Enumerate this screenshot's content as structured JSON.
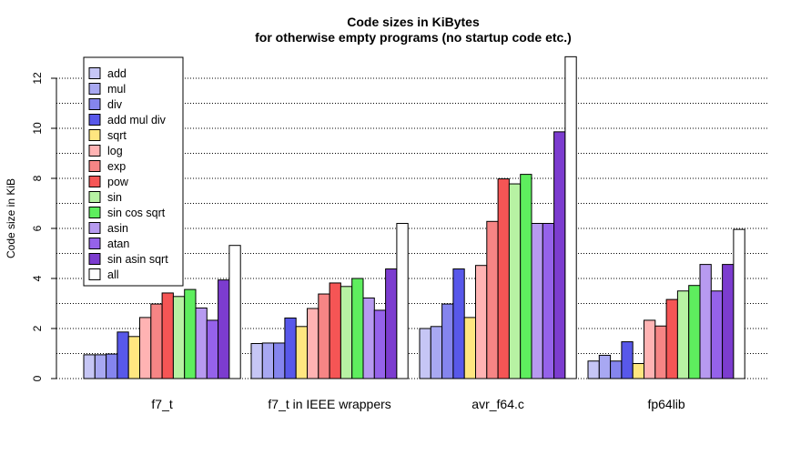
{
  "chart_data": {
    "type": "bar",
    "title": "Code sizes in KiBytes",
    "subtitle": "for otherwise empty programs (no startup code etc.)",
    "xlabel": "",
    "ylabel": "Code size in KiB",
    "ylim": [
      0,
      12.8
    ],
    "yticks": [
      0,
      2,
      4,
      6,
      8,
      10,
      12
    ],
    "grid": "horizontal dotted lines every 1 KiB",
    "legend_position": "top-left",
    "categories": [
      "f7_t",
      "f7_t in IEEE wrappers",
      "avr_f64.c",
      "fp64lib"
    ],
    "series": [
      {
        "name": "add",
        "color": "#c6c6f5",
        "values": [
          0.95,
          1.4,
          2.0,
          0.7
        ]
      },
      {
        "name": "mul",
        "color": "#a8a8f2",
        "values": [
          0.95,
          1.42,
          2.08,
          0.93
        ]
      },
      {
        "name": "div",
        "color": "#8585ee",
        "values": [
          0.98,
          1.42,
          2.98,
          0.7
        ]
      },
      {
        "name": "add mul div",
        "color": "#5858ea",
        "values": [
          1.86,
          2.42,
          4.38,
          1.47
        ]
      },
      {
        "name": "sqrt",
        "color": "#ffe680",
        "values": [
          1.68,
          2.08,
          2.44,
          0.6
        ]
      },
      {
        "name": "log",
        "color": "#ffb3b3",
        "values": [
          2.44,
          2.8,
          4.52,
          2.33
        ]
      },
      {
        "name": "exp",
        "color": "#f68585",
        "values": [
          2.98,
          3.38,
          6.28,
          2.1
        ]
      },
      {
        "name": "pow",
        "color": "#f55555",
        "values": [
          3.42,
          3.82,
          7.98,
          3.16
        ]
      },
      {
        "name": "sin",
        "color": "#b7f2a3",
        "values": [
          3.28,
          3.68,
          7.78,
          3.5
        ]
      },
      {
        "name": "sin cos sqrt",
        "color": "#5eee5e",
        "values": [
          3.56,
          4.0,
          8.16,
          3.72
        ]
      },
      {
        "name": "asin",
        "color": "#b79af0",
        "values": [
          2.82,
          3.22,
          6.2,
          4.56
        ]
      },
      {
        "name": "atan",
        "color": "#9562ea",
        "values": [
          2.33,
          2.73,
          6.2,
          3.5
        ]
      },
      {
        "name": "sin asin sqrt",
        "color": "#7c3ccf",
        "values": [
          3.94,
          4.38,
          9.86,
          4.56
        ]
      },
      {
        "name": "all",
        "color": "#ffffff",
        "values": [
          5.32,
          6.2,
          12.86,
          5.96
        ]
      }
    ]
  }
}
